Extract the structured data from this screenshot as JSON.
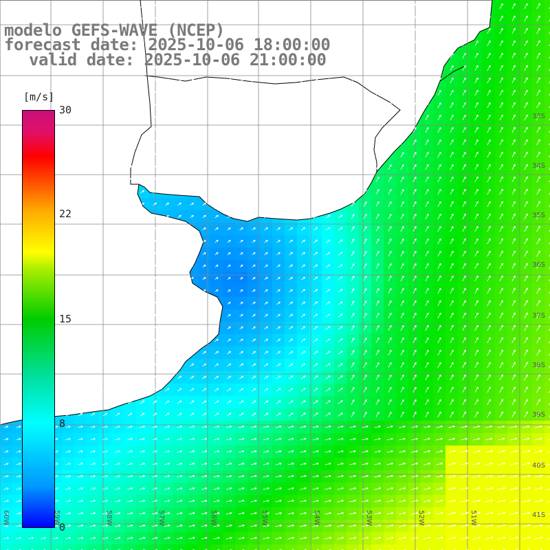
{
  "title": {
    "line1": "modelo GEFS-WAVE (NCEP)",
    "line2": "forecast date: 2025-10-06 18:00:00",
    "line3": "valid date: 2025-10-06 21:00:00"
  },
  "colorbar": {
    "unit": "[m/s]",
    "ticks": [
      {
        "value": 30,
        "label": "30"
      },
      {
        "value": 22,
        "label": "22"
      },
      {
        "value": 15,
        "label": "15"
      },
      {
        "value": 8,
        "label": "8"
      },
      {
        "value": 0,
        "label": "0"
      }
    ],
    "colors": [
      "#0000ff",
      "#0099ff",
      "#00ffff",
      "#00cc00",
      "#ffff00",
      "#ff3300",
      "#c8107a"
    ]
  },
  "map": {
    "lon_labels": [
      "60W",
      "59W",
      "58W",
      "57W",
      "56W",
      "55W",
      "54W",
      "53W",
      "52W",
      "51W"
    ],
    "lat_labels": [
      "33S",
      "34S",
      "35S",
      "36S",
      "37S",
      "38S",
      "39S",
      "40S",
      "41S"
    ],
    "land_color": "#ffffff",
    "grid_color": "#888888",
    "arrow_color": "#ffffff"
  }
}
